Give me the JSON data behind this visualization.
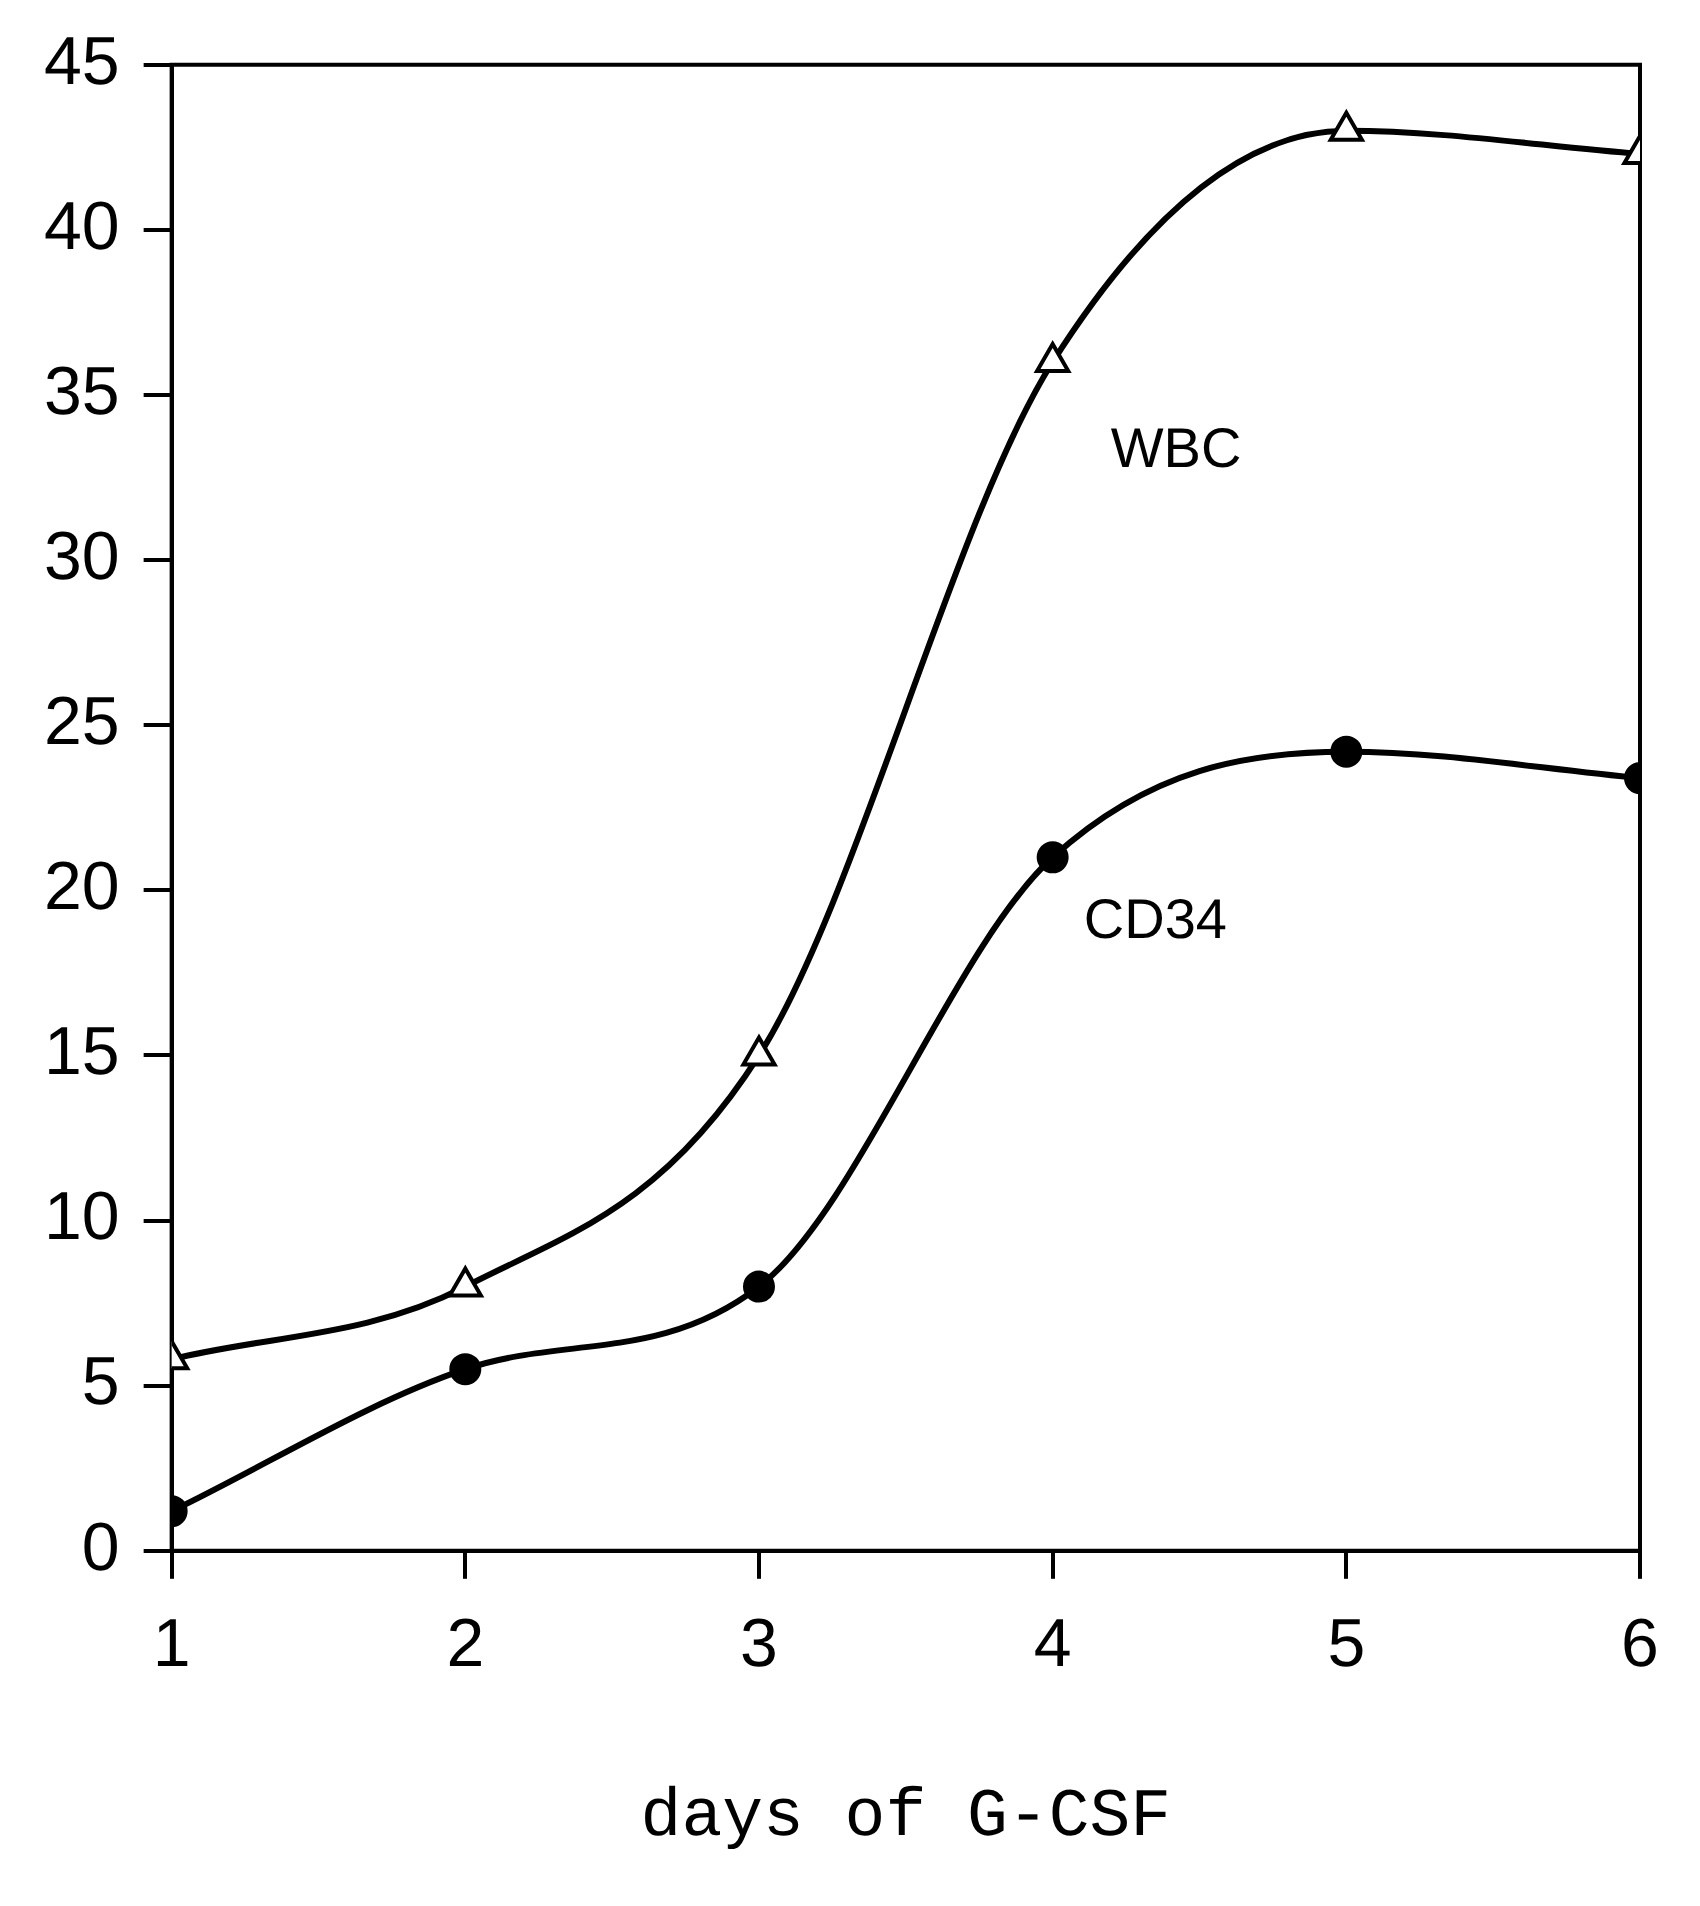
{
  "chart_data": {
    "type": "line",
    "xlabel": "days of G-CSF",
    "x": [
      1,
      2,
      3,
      4,
      5,
      6
    ],
    "xlim": [
      1,
      6
    ],
    "xticks": [
      1,
      2,
      3,
      4,
      5,
      6
    ],
    "ylim": [
      0,
      45
    ],
    "yticks": [
      0,
      5,
      10,
      15,
      20,
      25,
      30,
      35,
      40,
      45
    ],
    "grid": false,
    "legend": false,
    "series": [
      {
        "name": "WBC",
        "color": "#000000",
        "marker": "triangle",
        "values": [
          5.8,
          8,
          15,
          36,
          43,
          42.3
        ]
      },
      {
        "name": "CD34",
        "color": "#000000",
        "marker": "circle",
        "values": [
          1.2,
          5.5,
          8,
          21,
          24.2,
          23.4
        ]
      }
    ]
  }
}
